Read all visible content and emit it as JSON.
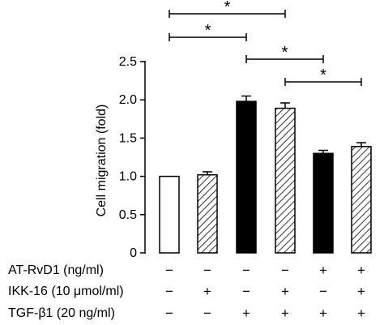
{
  "chart_data": {
    "type": "bar",
    "ylabel": "Cell migration (fold)",
    "ylim": [
      0,
      2.5
    ],
    "yticks": [
      "0",
      "0.5",
      "1.0",
      "1.5",
      "2.0",
      "2.5"
    ],
    "bars": [
      {
        "value": 1.0,
        "error": 0.0,
        "fill": "white"
      },
      {
        "value": 1.02,
        "error": 0.04,
        "fill": "hatch"
      },
      {
        "value": 1.98,
        "error": 0.07,
        "fill": "black"
      },
      {
        "value": 1.89,
        "error": 0.07,
        "fill": "hatch"
      },
      {
        "value": 1.3,
        "error": 0.04,
        "fill": "black"
      },
      {
        "value": 1.39,
        "error": 0.05,
        "fill": "hatch"
      }
    ],
    "conditions": [
      {
        "label": "AT-RvD1 (ng/ml)",
        "signs": [
          "−",
          "−",
          "−",
          "−",
          "+",
          "+"
        ]
      },
      {
        "label": "IKK-16 (10 μmol/ml)",
        "signs": [
          "−",
          "+",
          "−",
          "+",
          "−",
          "+"
        ]
      },
      {
        "label": "TGF-β1 (20 ng/ml)",
        "signs": [
          "−",
          "−",
          "+",
          "+",
          "+",
          "+"
        ]
      }
    ],
    "significance": [
      {
        "from": 0,
        "to": 3,
        "label": "*"
      },
      {
        "from": 0,
        "to": 2,
        "label": "*"
      },
      {
        "from": 2,
        "to": 4,
        "label": "*"
      },
      {
        "from": 3,
        "to": 5,
        "label": "*"
      }
    ]
  }
}
